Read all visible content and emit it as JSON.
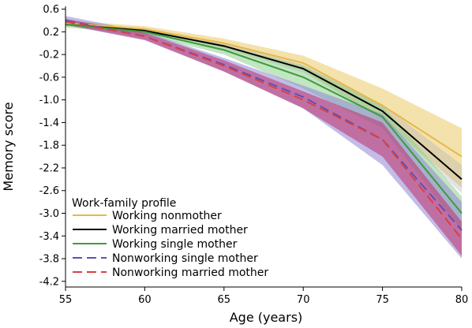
{
  "chart_data": {
    "type": "line",
    "xlabel": "Age (years)",
    "ylabel": "Memory score",
    "xlim": [
      55,
      80
    ],
    "ylim": [
      -4.3,
      0.65
    ],
    "x_ticks": [
      55,
      60,
      65,
      70,
      75,
      80
    ],
    "y_ticks": [
      0.6,
      0.2,
      -0.2,
      -0.6,
      -1.0,
      -1.4,
      -1.8,
      -2.2,
      -2.6,
      -3.0,
      -3.4,
      -3.8,
      -4.2
    ],
    "y_tick_labels": [
      "0.6",
      "0.2",
      "-0.2",
      "-0.6",
      "-1.0",
      "-1.4",
      "-1.8",
      "-2.2",
      "-2.6",
      "-3.0",
      "-3.4",
      "-3.8",
      "-4.2"
    ],
    "x": [
      55,
      60,
      65,
      70,
      75,
      80
    ],
    "legend": {
      "title": "Work-family profile",
      "placement": "bottom-left"
    },
    "grid": false,
    "series": [
      {
        "name": "Working nonmother",
        "color": "#e6b84a",
        "dash": "solid",
        "values": [
          0.35,
          0.25,
          0.0,
          -0.35,
          -1.1,
          -2.0
        ],
        "lower": [
          0.3,
          0.2,
          -0.08,
          -0.48,
          -1.35,
          -2.55
        ],
        "upper": [
          0.4,
          0.3,
          0.08,
          -0.22,
          -0.8,
          -1.5
        ]
      },
      {
        "name": "Working married mother",
        "color": "#000000",
        "dash": "solid",
        "values": [
          0.33,
          0.22,
          -0.05,
          -0.45,
          -1.2,
          -2.4
        ],
        "lower": [
          0.3,
          0.18,
          -0.1,
          -0.52,
          -1.32,
          -2.65
        ],
        "upper": [
          0.36,
          0.26,
          0.0,
          -0.38,
          -1.08,
          -2.15
        ]
      },
      {
        "name": "Working single mother",
        "color": "#3c9c3c",
        "dash": "solid",
        "values": [
          0.33,
          0.2,
          -0.12,
          -0.6,
          -1.3,
          -3.0
        ],
        "lower": [
          0.28,
          0.15,
          -0.2,
          -0.8,
          -1.5,
          -3.3
        ],
        "upper": [
          0.38,
          0.25,
          -0.04,
          -0.4,
          -1.1,
          -2.7
        ]
      },
      {
        "name": "Nonworking single mother",
        "color": "#5b50b8",
        "dash": "dashed",
        "values": [
          0.4,
          0.12,
          -0.38,
          -0.95,
          -1.7,
          -3.3
        ],
        "lower": [
          0.32,
          0.05,
          -0.5,
          -1.15,
          -2.15,
          -3.8
        ],
        "upper": [
          0.48,
          0.2,
          -0.26,
          -0.75,
          -1.25,
          -2.8
        ]
      },
      {
        "name": "Nonworking married mother",
        "color": "#d94040",
        "dash": "dashed",
        "values": [
          0.38,
          0.12,
          -0.4,
          -1.0,
          -1.7,
          -3.45
        ],
        "lower": [
          0.33,
          0.06,
          -0.5,
          -1.15,
          -2.0,
          -3.75
        ],
        "upper": [
          0.43,
          0.18,
          -0.3,
          -0.85,
          -1.4,
          -3.15
        ]
      }
    ]
  },
  "colors": {
    "band_nonmother": "#f0d890",
    "band_married": "#b0b0b0",
    "band_single": "#8fcf8f",
    "band_nonworking_single": "#8f86d6",
    "band_nonworking_married": "#c0306a"
  }
}
